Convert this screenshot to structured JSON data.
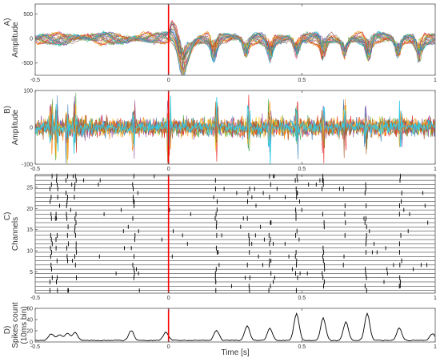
{
  "chart_data": [
    {
      "type": "line",
      "panel_label": "A)",
      "ylabel": "Amplitude",
      "xlim": [
        -0.5,
        1
      ],
      "ylim": [
        -750,
        700
      ],
      "xticks": [
        "-0.5",
        "0",
        "0.5",
        "1"
      ],
      "yticks": [
        "500",
        "0",
        "-500"
      ],
      "n_channels": 28,
      "stimulus_marker_x": 0,
      "colors": [
        "#e41a1c",
        "#377eb8",
        "#4daf4a",
        "#984ea3",
        "#ff7f00",
        "#a65628",
        "#f781bf",
        "#17becf",
        "#bcbd22",
        "#1f77b4",
        "#d62728",
        "#2ca02c",
        "#9467bd",
        "#8c564b",
        "#ff9896",
        "#ffbb78",
        "#98df8a",
        "#c5b0d5"
      ]
    },
    {
      "type": "line",
      "panel_label": "B)",
      "ylabel": "Amplitude",
      "xlim": [
        -0.5,
        1
      ],
      "ylim": [
        -100,
        100
      ],
      "xticks": [
        "-0.5",
        "0",
        "0.5",
        "1"
      ],
      "yticks": [
        "100",
        "0",
        "-100"
      ],
      "stimulus_marker_x": 0,
      "colors": [
        "#e41a1c",
        "#377eb8",
        "#4daf4a",
        "#ff7f00",
        "#984ea3",
        "#f0c020",
        "#a65628",
        "#2ecbe8"
      ]
    },
    {
      "type": "scatter",
      "panel_label": "C)",
      "ylabel": "Channels",
      "xlim": [
        -0.5,
        1
      ],
      "ylim": [
        0,
        28
      ],
      "xticks": [
        "-0.5",
        "0",
        "0.5",
        "1"
      ],
      "yticks": [
        "25",
        "20",
        "15",
        "10",
        "5"
      ],
      "n_channels": 28,
      "stimulus_marker_x": 0,
      "burst_times": [
        -0.44,
        -0.42,
        -0.38,
        -0.35,
        -0.13,
        0.18,
        0.3,
        0.38,
        0.48,
        0.58,
        0.66,
        0.74,
        0.87
      ],
      "marker_color": "#000000"
    },
    {
      "type": "line",
      "panel_label": "D)",
      "ylabel": "Spikes count",
      "ylabel2": "(10ms bin)",
      "xlabel": "Time [s]",
      "xlim": [
        -0.5,
        1
      ],
      "ylim": [
        0,
        60
      ],
      "xticks": [
        "-0.5",
        "0",
        "0.5",
        "1"
      ],
      "yticks": [
        "60",
        "40",
        "20",
        "0"
      ],
      "stimulus_marker_x": 0,
      "peaks": [
        {
          "t": -0.44,
          "h": 12
        },
        {
          "t": -0.41,
          "h": 10
        },
        {
          "t": -0.38,
          "h": 13
        },
        {
          "t": -0.35,
          "h": 14
        },
        {
          "t": -0.14,
          "h": 18
        },
        {
          "t": -0.01,
          "h": 15
        },
        {
          "t": 0.18,
          "h": 18
        },
        {
          "t": 0.295,
          "h": 26
        },
        {
          "t": 0.38,
          "h": 22
        },
        {
          "t": 0.48,
          "h": 48
        },
        {
          "t": 0.58,
          "h": 40
        },
        {
          "t": 0.665,
          "h": 33
        },
        {
          "t": 0.745,
          "h": 48
        },
        {
          "t": 0.865,
          "h": 22
        },
        {
          "t": 0.99,
          "h": 12
        }
      ],
      "baseline": 2,
      "line_color": "#000000"
    }
  ],
  "stimulus_color": "#ff0000"
}
